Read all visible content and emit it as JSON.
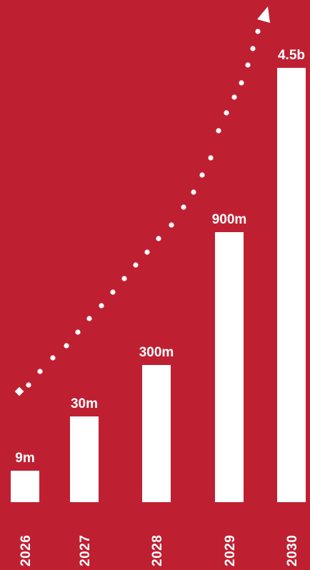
{
  "chart_data": {
    "type": "bar",
    "categories": [
      "2026",
      "2027",
      "2028",
      "2029",
      "2030"
    ],
    "values": [
      9000000,
      30000000,
      300000000,
      900000000,
      4500000000
    ],
    "data_labels": [
      "9m",
      "30m",
      "300m",
      "900m",
      "4.5b"
    ],
    "title": "",
    "xlabel": "",
    "ylabel": "",
    "scale": "non-linear",
    "grid": false,
    "legend": "none",
    "trend_arrow": true
  },
  "colors": {
    "background": "#be2032",
    "bars": "#ffffff",
    "text": "#ffffff"
  }
}
